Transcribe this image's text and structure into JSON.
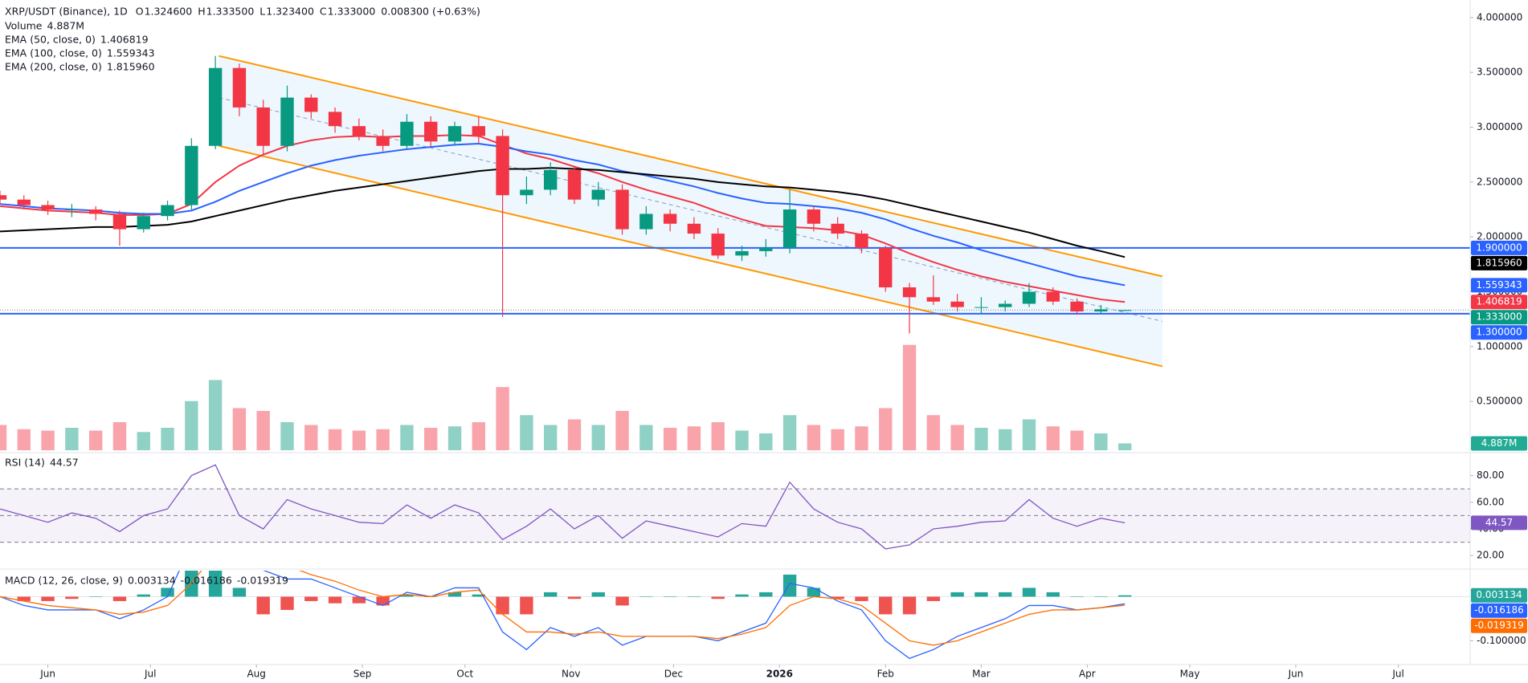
{
  "chart_data": {
    "type": "candlestick",
    "title": "XRP/USDT (Binance), 1D",
    "header": {
      "open": {
        "prefix": "O",
        "value": 1.3246,
        "label": "1.324600"
      },
      "high": {
        "prefix": "H",
        "value": 1.3335,
        "label": "1.333500"
      },
      "low": {
        "prefix": "L",
        "value": 1.3234,
        "label": "1.323400"
      },
      "close": {
        "prefix": "C",
        "value": 1.333,
        "label": "1.333000"
      },
      "change": {
        "value": 0.0083,
        "label": "0.008300"
      },
      "change_pct": {
        "value": 0.63,
        "label": "(+0.63%)"
      }
    },
    "x": [
      "2025-05-18",
      "2025-05-25",
      "2025-06-01",
      "2025-06-08",
      "2025-06-15",
      "2025-06-22",
      "2025-06-29",
      "2025-07-06",
      "2025-07-13",
      "2025-07-20",
      "2025-07-27",
      "2025-08-03",
      "2025-08-10",
      "2025-08-17",
      "2025-08-24",
      "2025-08-31",
      "2025-09-07",
      "2025-09-14",
      "2025-09-21",
      "2025-09-28",
      "2025-10-05",
      "2025-10-12",
      "2025-10-19",
      "2025-10-26",
      "2025-11-02",
      "2025-11-09",
      "2025-11-16",
      "2025-11-23",
      "2025-11-30",
      "2025-12-07",
      "2025-12-14",
      "2025-12-21",
      "2025-12-28",
      "2026-01-04",
      "2026-01-11",
      "2026-01-18",
      "2026-01-25",
      "2026-02-01",
      "2026-02-08",
      "2026-02-15",
      "2026-02-22",
      "2026-03-01",
      "2026-03-08",
      "2026-03-15",
      "2026-03-22",
      "2026-03-29",
      "2026-04-05",
      "2026-04-12"
    ],
    "xlim": [
      "2025-05-18",
      "2026-07-22"
    ],
    "xticks": [
      {
        "value": "2025-06-01",
        "label": "Jun"
      },
      {
        "value": "2025-07-01",
        "label": "Jul"
      },
      {
        "value": "2025-08-01",
        "label": "Aug"
      },
      {
        "value": "2025-09-01",
        "label": "Sep"
      },
      {
        "value": "2025-10-01",
        "label": "Oct"
      },
      {
        "value": "2025-11-01",
        "label": "Nov"
      },
      {
        "value": "2025-12-01",
        "label": "Dec"
      },
      {
        "value": "2026-01-01",
        "label": "2026"
      },
      {
        "value": "2026-02-01",
        "label": "Feb"
      },
      {
        "value": "2026-03-01",
        "label": "Mar"
      },
      {
        "value": "2026-04-01",
        "label": "Apr"
      },
      {
        "value": "2026-05-01",
        "label": "May"
      },
      {
        "value": "2026-06-01",
        "label": "Jun"
      },
      {
        "value": "2026-07-01",
        "label": "Jul"
      }
    ],
    "ylim": [
      0.04,
      4.16
    ],
    "yticks": [
      {
        "value": 0.5,
        "label": "0.500000"
      },
      {
        "value": 1,
        "label": "1.000000"
      },
      {
        "value": 1.5,
        "label": "1.500000"
      },
      {
        "value": 2,
        "label": "2.000000"
      },
      {
        "value": 2.5,
        "label": "2.500000"
      },
      {
        "value": 3,
        "label": "3.000000"
      },
      {
        "value": 3.5,
        "label": "3.500000"
      },
      {
        "value": 4,
        "label": "4.000000"
      }
    ],
    "grid": false,
    "up_color": "#089981",
    "down_color": "#f23645",
    "open": [
      2.38,
      2.34,
      2.29,
      2.25,
      2.25,
      2.21,
      2.07,
      2.19,
      2.29,
      2.83,
      3.54,
      3.18,
      2.83,
      3.27,
      3.14,
      3.01,
      2.92,
      2.83,
      3.05,
      2.87,
      3.01,
      2.92,
      2.38,
      2.43,
      2.61,
      2.34,
      2.43,
      2.07,
      2.21,
      2.12,
      2.03,
      1.83,
      1.87,
      1.9,
      2.25,
      2.12,
      2.03,
      1.9,
      1.54,
      1.45,
      1.41,
      1.36,
      1.36,
      1.39,
      1.5,
      1.41,
      1.32,
      1.3246
    ],
    "high": [
      2.42,
      2.38,
      2.33,
      2.3,
      2.28,
      2.24,
      2.22,
      2.33,
      2.9,
      3.65,
      3.58,
      3.25,
      3.38,
      3.3,
      3.18,
      3.08,
      2.98,
      3.12,
      3.1,
      3.05,
      3.1,
      2.98,
      2.55,
      2.68,
      2.65,
      2.5,
      2.48,
      2.28,
      2.25,
      2.18,
      2.08,
      1.92,
      1.98,
      2.43,
      2.28,
      2.18,
      2.06,
      1.92,
      1.58,
      1.65,
      1.48,
      1.45,
      1.42,
      1.58,
      1.54,
      1.44,
      1.38,
      1.3335
    ],
    "low": [
      2.3,
      2.25,
      2.2,
      2.18,
      2.15,
      1.92,
      2.04,
      2.15,
      2.25,
      2.8,
      3.1,
      2.75,
      2.78,
      3.08,
      2.95,
      2.88,
      2.78,
      2.8,
      2.82,
      2.83,
      2.85,
      1.27,
      2.3,
      2.38,
      2.3,
      2.28,
      2.02,
      2.02,
      2.05,
      1.98,
      1.8,
      1.78,
      1.82,
      1.85,
      2.05,
      1.98,
      1.85,
      1.5,
      1.12,
      1.38,
      1.32,
      1.3,
      1.32,
      1.36,
      1.38,
      1.29,
      1.3,
      1.3234
    ],
    "close": [
      2.34,
      2.29,
      2.25,
      2.25,
      2.21,
      2.07,
      2.19,
      2.29,
      2.83,
      3.54,
      3.18,
      2.83,
      3.27,
      3.14,
      3.01,
      2.92,
      2.83,
      3.05,
      2.87,
      3.01,
      2.92,
      2.38,
      2.43,
      2.61,
      2.34,
      2.43,
      2.07,
      2.21,
      2.12,
      2.03,
      1.83,
      1.87,
      1.9,
      2.25,
      2.12,
      2.03,
      1.9,
      1.54,
      1.45,
      1.41,
      1.36,
      1.36,
      1.39,
      1.5,
      1.41,
      1.32,
      1.34,
      1.333
    ],
    "volume": {
      "name": "Volume",
      "ylim": [
        0,
        80
      ],
      "values": [
        18,
        15,
        14,
        16,
        14,
        20,
        13,
        16,
        35,
        50,
        30,
        28,
        20,
        18,
        15,
        14,
        15,
        18,
        16,
        17,
        20,
        45,
        25,
        18,
        22,
        18,
        28,
        18,
        16,
        17,
        20,
        14,
        12,
        25,
        18,
        15,
        17,
        30,
        75,
        25,
        18,
        16,
        15,
        22,
        17,
        14,
        12,
        4.887
      ],
      "value_labels": [
        null,
        null,
        null,
        null,
        null,
        null,
        null,
        null,
        null,
        null,
        null,
        null,
        null,
        null,
        null,
        null,
        null,
        null,
        null,
        null,
        null,
        null,
        null,
        null,
        null,
        null,
        null,
        null,
        null,
        null,
        null,
        null,
        null,
        null,
        null,
        null,
        null,
        null,
        null,
        null,
        null,
        null,
        null,
        null,
        null,
        null,
        null,
        "4.887M"
      ]
    },
    "series": [
      {
        "name": "EMA (50, close, 0)",
        "color": "#f23645",
        "last": {
          "value": 1.406819,
          "label": "1.406819"
        },
        "values": [
          2.28,
          2.26,
          2.24,
          2.23,
          2.22,
          2.2,
          2.2,
          2.21,
          2.3,
          2.5,
          2.65,
          2.75,
          2.83,
          2.88,
          2.91,
          2.92,
          2.91,
          2.92,
          2.92,
          2.93,
          2.92,
          2.84,
          2.76,
          2.71,
          2.64,
          2.58,
          2.5,
          2.43,
          2.37,
          2.31,
          2.23,
          2.16,
          2.1,
          2.09,
          2.08,
          2.06,
          2.02,
          1.94,
          1.85,
          1.77,
          1.7,
          1.64,
          1.59,
          1.55,
          1.51,
          1.47,
          1.43,
          1.406819
        ]
      },
      {
        "name": "EMA (100, close, 0)",
        "color": "#2962ff",
        "last": {
          "value": 1.559343,
          "label": "1.559343"
        },
        "values": [
          2.3,
          2.28,
          2.26,
          2.25,
          2.24,
          2.22,
          2.21,
          2.21,
          2.24,
          2.32,
          2.42,
          2.5,
          2.58,
          2.65,
          2.7,
          2.74,
          2.77,
          2.8,
          2.82,
          2.84,
          2.85,
          2.82,
          2.78,
          2.75,
          2.7,
          2.66,
          2.6,
          2.56,
          2.51,
          2.46,
          2.4,
          2.35,
          2.31,
          2.3,
          2.28,
          2.26,
          2.22,
          2.16,
          2.08,
          2.01,
          1.95,
          1.88,
          1.82,
          1.76,
          1.7,
          1.64,
          1.6,
          1.559343
        ]
      },
      {
        "name": "EMA (200, close, 0)",
        "color": "#000000",
        "last": {
          "value": 1.81596,
          "label": "1.815960"
        },
        "values": [
          2.05,
          2.06,
          2.07,
          2.08,
          2.09,
          2.09,
          2.1,
          2.11,
          2.14,
          2.19,
          2.24,
          2.29,
          2.34,
          2.38,
          2.42,
          2.45,
          2.48,
          2.51,
          2.54,
          2.57,
          2.6,
          2.62,
          2.62,
          2.63,
          2.62,
          2.61,
          2.59,
          2.57,
          2.55,
          2.53,
          2.5,
          2.48,
          2.46,
          2.45,
          2.43,
          2.41,
          2.38,
          2.34,
          2.29,
          2.24,
          2.19,
          2.14,
          2.09,
          2.04,
          1.98,
          1.92,
          1.87,
          1.81596
        ]
      }
    ],
    "hlines": [
      {
        "value": 1.9,
        "label": "1.900000",
        "color": "#2962ff"
      },
      {
        "value": 1.3,
        "label": "1.300000",
        "color": "#2962ff"
      }
    ],
    "channel": {
      "color": "#ff9800",
      "fill": "#2196f3",
      "middle_color": "#8a9bb8",
      "x": [
        "2025-07-21",
        "2026-04-23"
      ],
      "upper": [
        3.65,
        1.64
      ],
      "lower": [
        2.83,
        0.82
      ],
      "middle": [
        3.27,
        1.23
      ]
    },
    "rsi": {
      "type": "line",
      "name": "RSI (14)",
      "color": "#7e57c2",
      "ylim": [
        10.5,
        96.6
      ],
      "yticks": [
        {
          "value": 20,
          "label": "20.00"
        },
        {
          "value": 40,
          "label": "40.00"
        },
        {
          "value": 60,
          "label": "60.00"
        },
        {
          "value": 80,
          "label": "80.00"
        }
      ],
      "levels": [
        30,
        50,
        70
      ],
      "values": [
        55,
        50,
        45,
        52,
        48,
        38,
        50,
        55,
        80,
        88,
        50,
        40,
        62,
        55,
        50,
        45,
        44,
        58,
        48,
        58,
        52,
        32,
        42,
        55,
        40,
        50,
        33,
        46,
        42,
        38,
        34,
        44,
        42,
        75,
        55,
        45,
        40,
        25,
        28,
        40,
        42,
        45,
        46,
        62,
        48,
        42,
        48,
        44.57
      ]
    },
    "macd": {
      "type": "bar",
      "name": "MACD (12, 26, close, 9)",
      "ylim": [
        -0.152,
        0.059
      ],
      "yticks": [
        {
          "value": -0.1,
          "label": "-0.100000"
        }
      ],
      "histogram": {
        "up_color": "#26a69a",
        "down_color": "#ef5350",
        "values": [
          0.0,
          -0.01,
          -0.01,
          -0.005,
          0.0,
          -0.01,
          0.005,
          0.02,
          0.09,
          0.1,
          0.02,
          -0.04,
          -0.03,
          -0.01,
          -0.015,
          -0.015,
          -0.02,
          0.005,
          0.0,
          0.01,
          0.005,
          -0.04,
          -0.04,
          0.01,
          -0.005,
          0.01,
          -0.02,
          0.0,
          0.0,
          0.0,
          -0.005,
          0.005,
          0.01,
          0.05,
          0.02,
          -0.005,
          -0.01,
          -0.04,
          -0.04,
          -0.01,
          0.01,
          0.01,
          0.01,
          0.02,
          0.01,
          0.0,
          0.0,
          0.003134
        ]
      },
      "macd": {
        "color": "#2962ff",
        "values": [
          0.0,
          -0.02,
          -0.03,
          -0.03,
          -0.03,
          -0.05,
          -0.03,
          0.0,
          0.12,
          0.2,
          0.15,
          0.06,
          0.04,
          0.04,
          0.02,
          0.0,
          -0.02,
          0.01,
          0.0,
          0.02,
          0.02,
          -0.08,
          -0.12,
          -0.07,
          -0.09,
          -0.07,
          -0.11,
          -0.09,
          -0.09,
          -0.09,
          -0.1,
          -0.08,
          -0.06,
          0.03,
          0.02,
          -0.01,
          -0.03,
          -0.1,
          -0.14,
          -0.12,
          -0.09,
          -0.07,
          -0.05,
          -0.02,
          -0.02,
          -0.03,
          -0.025,
          -0.016186
        ]
      },
      "signal": {
        "color": "#ff6d00",
        "values": [
          0.0,
          -0.01,
          -0.02,
          -0.025,
          -0.03,
          -0.04,
          -0.035,
          -0.02,
          0.03,
          0.1,
          0.13,
          0.1,
          0.07,
          0.05,
          0.035,
          0.015,
          0.0,
          0.005,
          0.0,
          0.01,
          0.015,
          -0.04,
          -0.08,
          -0.08,
          -0.085,
          -0.08,
          -0.09,
          -0.09,
          -0.09,
          -0.09,
          -0.095,
          -0.085,
          -0.07,
          -0.02,
          0.0,
          -0.005,
          -0.02,
          -0.06,
          -0.1,
          -0.11,
          -0.1,
          -0.08,
          -0.06,
          -0.04,
          -0.03,
          -0.03,
          -0.025,
          -0.019319
        ]
      }
    }
  }
}
